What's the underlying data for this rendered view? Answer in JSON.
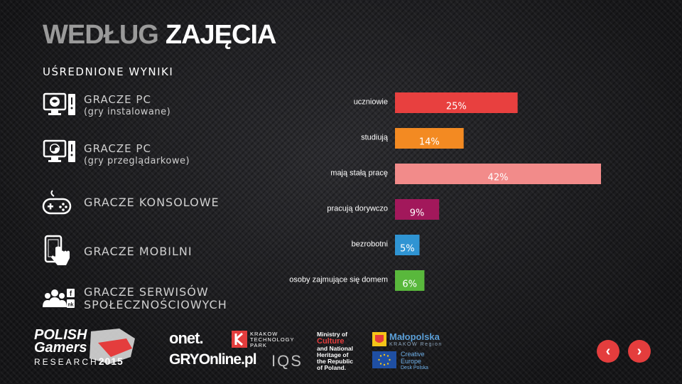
{
  "header": {
    "title_part1": "WEDŁUG",
    "title_part2": "ZAJĘCIA",
    "subtitle": "UŚREDNIONE WYNIKI"
  },
  "categories": [
    {
      "label": "GRACZE PC",
      "sub": "(gry instalowane)",
      "icon": "pc-installed-icon"
    },
    {
      "label": "GRACZE PC",
      "sub": "(gry przeglądarkowe)",
      "icon": "pc-browser-icon"
    },
    {
      "label": "GRACZE KONSOLOWE",
      "sub": "",
      "icon": "gamepad-icon"
    },
    {
      "label": "GRACZE MOBILNI",
      "sub": "",
      "icon": "mobile-touch-icon"
    },
    {
      "label": "GRACZE SERWISÓW",
      "sub": "SPOŁECZNOŚCIOWYCH",
      "icon": "social-users-icon"
    }
  ],
  "chart_data": {
    "type": "bar",
    "orientation": "horizontal",
    "categories": [
      "uczniowie",
      "studiują",
      "mają stałą pracę",
      "pracują dorywczo",
      "bezrobotni",
      "osoby zajmujące się domem"
    ],
    "values": [
      25,
      14,
      42,
      9,
      5,
      6
    ],
    "labels": [
      "25%",
      "14%",
      "42%",
      "9%",
      "5%",
      "6%"
    ],
    "colors": [
      "#e8403f",
      "#f38a22",
      "#f28b8a",
      "#a2185b",
      "#2f94d3",
      "#59b83c"
    ],
    "unit": "%",
    "title": "",
    "xlabel": "",
    "ylabel": "",
    "xlim": [
      0,
      42
    ]
  },
  "footer": {
    "logos": {
      "pgr_line1": "POLISH",
      "pgr_line2": "Gamers",
      "pgr_line3": "RESEARCH",
      "pgr_year": "2015",
      "onet": "onet.",
      "gry_online": "GRYOnline.pl",
      "ktp_line1": "KRAKOW",
      "ktp_line2": "TECHNOLOGY",
      "ktp_line3": "PARK",
      "iqs": "IQS",
      "ministry_line1": "Ministry of",
      "ministry_line2": "Culture",
      "ministry_line3": "and National",
      "ministry_line4": "Heritage of",
      "ministry_line5": "the Republic",
      "ministry_line6": "of Poland.",
      "malopolska": "Małopolska",
      "malopolska_sub": "KRAKÓW Region",
      "ce_line1": "Creative",
      "ce_line2": "Europe",
      "ce_line3": "Desk Polska"
    },
    "nav": {
      "prev": "‹",
      "next": "›"
    },
    "accent": "#e43d3d"
  }
}
